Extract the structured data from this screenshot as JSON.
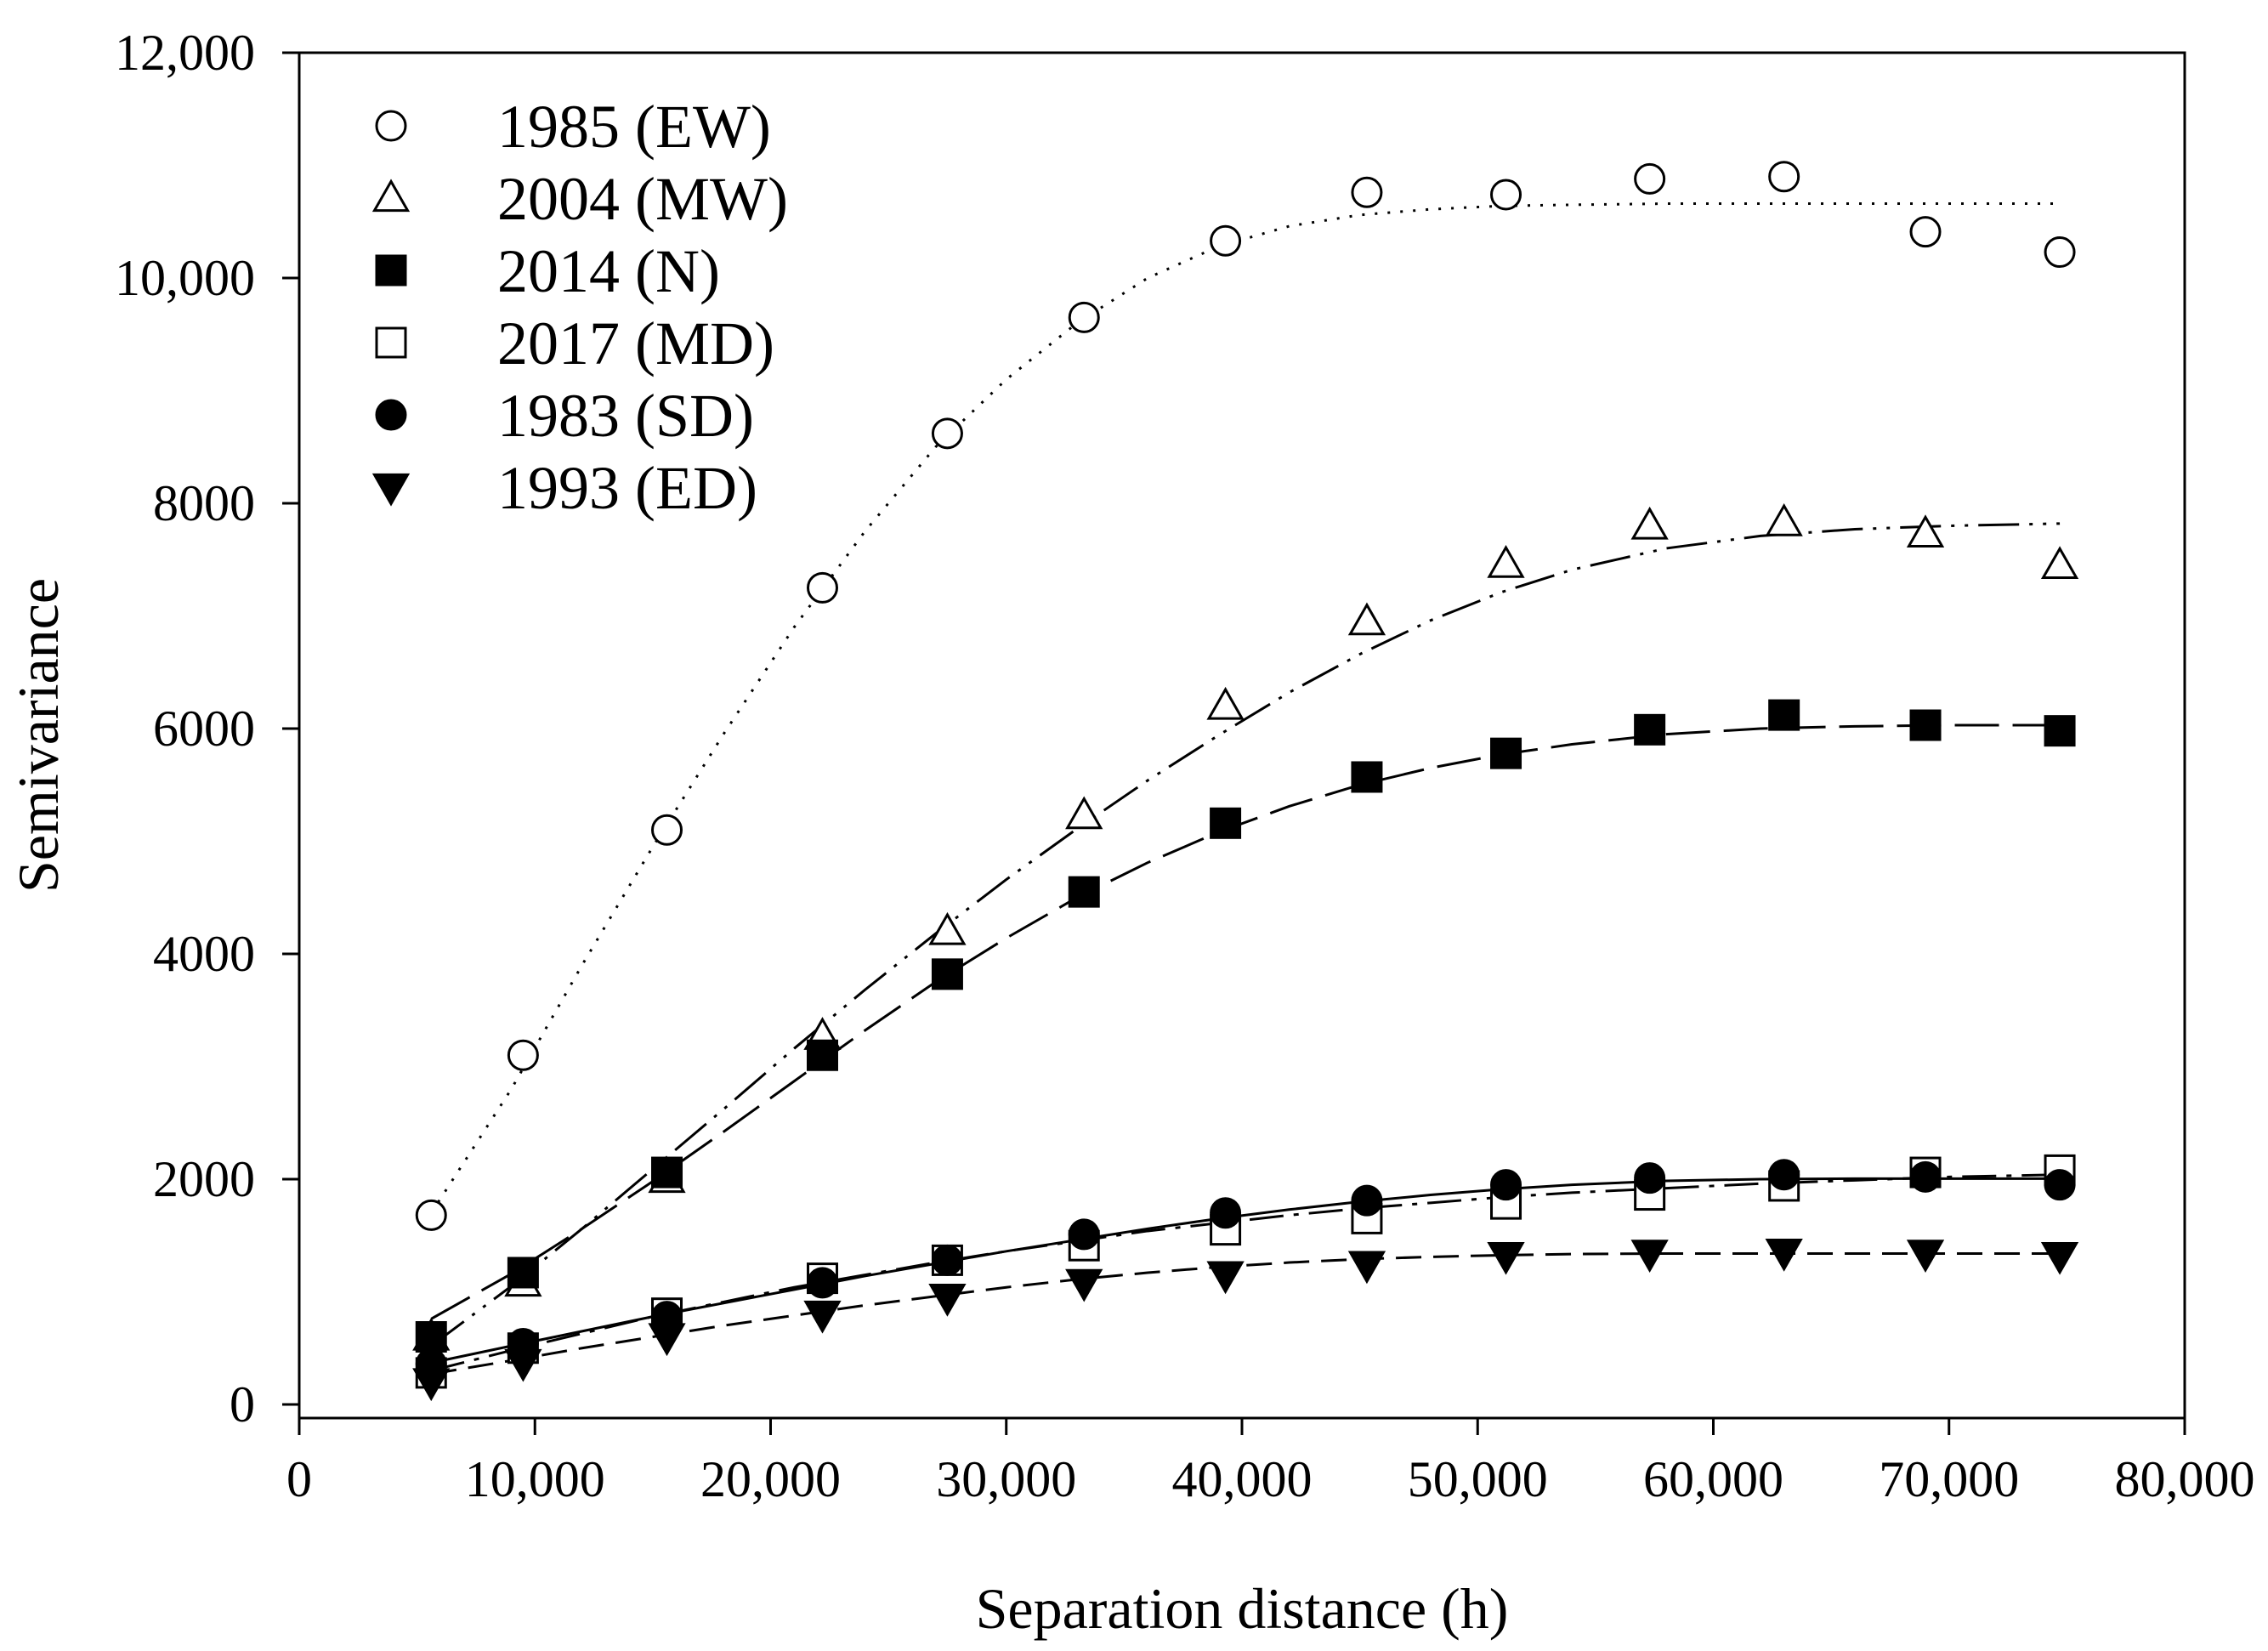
{
  "chart_data": {
    "type": "scatter",
    "title": "",
    "xlabel": "Separation distance (h)",
    "ylabel": "Semivariance",
    "xlim": [
      0,
      80000
    ],
    "ylim": [
      0,
      12000
    ],
    "x_ticks": [
      0,
      10000,
      20000,
      30000,
      40000,
      50000,
      60000,
      70000,
      80000
    ],
    "x_tick_labels": [
      "0",
      "10,000",
      "20,000",
      "30,000",
      "40,000",
      "50,000",
      "60,000",
      "70,000",
      "80,000"
    ],
    "y_ticks": [
      0,
      2000,
      4000,
      6000,
      8000,
      10000,
      12000
    ],
    "y_tick_labels": [
      "0",
      "2000",
      "4000",
      "6000",
      "8000",
      "10,000",
      "12,000"
    ],
    "grid": false,
    "legend_position": "top-left",
    "series": [
      {
        "name": "1985 (EW)",
        "marker": "circle-open",
        "line_style": "dotted",
        "x": [
          5600,
          9500,
          15600,
          22200,
          27500,
          33300,
          39300,
          45300,
          51200,
          57300,
          63000,
          69000,
          74700
        ],
        "y": [
          1680,
          3100,
          5100,
          7250,
          8620,
          9650,
          10330,
          10760,
          10740,
          10880,
          10900,
          10410,
          10230
        ],
        "fit_x": [
          5600,
          9000,
          12000,
          15000,
          18000,
          21000,
          24000,
          27000,
          30000,
          33000,
          36000,
          39000,
          42000,
          45000,
          48000,
          51000,
          54000,
          58000,
          62000,
          66000,
          70000,
          74700
        ],
        "fit_y": [
          1700,
          2800,
          3900,
          4950,
          5950,
          6900,
          7750,
          8500,
          9100,
          9600,
          10000,
          10280,
          10460,
          10560,
          10610,
          10640,
          10650,
          10660,
          10660,
          10660,
          10660,
          10660
        ]
      },
      {
        "name": "2004 (MW)",
        "marker": "triangle-open",
        "line_style": "dash-dot-dot",
        "x": [
          5600,
          9500,
          15600,
          22200,
          27500,
          33300,
          39300,
          45300,
          51200,
          57300,
          63000,
          69000,
          74700
        ],
        "y": [
          600,
          1080,
          2000,
          3270,
          4200,
          5230,
          6200,
          6950,
          7460,
          7800,
          7830,
          7730,
          7450
        ],
        "fit_x": [
          5600,
          9000,
          12000,
          15000,
          18000,
          21000,
          24000,
          27000,
          30000,
          33000,
          36000,
          39000,
          42000,
          45000,
          48000,
          51000,
          54000,
          58000,
          62000,
          66000,
          70000,
          74700
        ],
        "fit_y": [
          520,
          1050,
          1560,
          2090,
          2620,
          3160,
          3680,
          4180,
          4660,
          5110,
          5540,
          5940,
          6320,
          6660,
          6960,
          7210,
          7410,
          7600,
          7710,
          7770,
          7800,
          7820
        ]
      },
      {
        "name": "2014 (N)",
        "marker": "square-filled",
        "line_style": "long-dash",
        "x": [
          5600,
          9500,
          15600,
          22200,
          27500,
          33300,
          39300,
          45300,
          51200,
          57300,
          63000,
          69000,
          74700
        ],
        "y": [
          600,
          1170,
          2060,
          3100,
          3820,
          4550,
          5160,
          5570,
          5780,
          5990,
          6120,
          6030,
          5980
        ],
        "fit_x": [
          5600,
          9000,
          12000,
          15000,
          18000,
          21000,
          24000,
          27000,
          30000,
          33000,
          36000,
          39000,
          42000,
          45000,
          48000,
          51000,
          54000,
          58000,
          62000,
          66000,
          70000,
          74700
        ],
        "fit_y": [
          760,
          1160,
          1560,
          1980,
          2420,
          2870,
          3320,
          3750,
          4140,
          4500,
          4810,
          5080,
          5310,
          5500,
          5650,
          5770,
          5860,
          5950,
          6000,
          6020,
          6030,
          6030
        ]
      },
      {
        "name": "2017 (MD)",
        "marker": "square-open",
        "line_style": "dash-dot",
        "x": [
          5600,
          9500,
          15600,
          22200,
          27500,
          33300,
          39300,
          45300,
          51200,
          57300,
          63000,
          69000,
          74700
        ],
        "y": [
          280,
          500,
          810,
          1120,
          1280,
          1410,
          1550,
          1650,
          1780,
          1860,
          1940,
          2060,
          2080
        ],
        "fit_x": [
          5600,
          9000,
          12000,
          15000,
          18000,
          21000,
          24000,
          27000,
          30000,
          33000,
          36000,
          39000,
          42000,
          45000,
          48000,
          51000,
          54000,
          58000,
          62000,
          66000,
          70000,
          74700
        ],
        "fit_y": [
          300,
          480,
          630,
          780,
          910,
          1040,
          1150,
          1260,
          1360,
          1450,
          1540,
          1610,
          1680,
          1740,
          1790,
          1840,
          1880,
          1920,
          1960,
          1990,
          2020,
          2040
        ]
      },
      {
        "name": "1983 (SD)",
        "marker": "circle-filled",
        "line_style": "solid",
        "x": [
          5600,
          9500,
          15600,
          22200,
          27500,
          33300,
          39300,
          45300,
          51200,
          57300,
          63000,
          69000,
          74700
        ],
        "y": [
          360,
          540,
          780,
          1080,
          1280,
          1510,
          1700,
          1810,
          1950,
          2010,
          2040,
          2020,
          1950
        ],
        "fit_x": [
          5600,
          9000,
          12000,
          15000,
          18000,
          21000,
          24000,
          27000,
          30000,
          33000,
          36000,
          39000,
          42000,
          45000,
          48000,
          51000,
          54000,
          58000,
          62000,
          66000,
          70000,
          74700
        ],
        "fit_y": [
          370,
          520,
          650,
          780,
          900,
          1020,
          1140,
          1250,
          1360,
          1460,
          1560,
          1650,
          1730,
          1800,
          1860,
          1910,
          1950,
          1985,
          2000,
          2005,
          2005,
          2005
        ]
      },
      {
        "name": "1993 (ED)",
        "marker": "triangle-down-filled",
        "line_style": "dashed",
        "x": [
          5600,
          9500,
          15600,
          22200,
          27500,
          33300,
          39300,
          45300,
          51200,
          57300,
          63000,
          69000,
          74700
        ],
        "y": [
          200,
          370,
          600,
          800,
          950,
          1080,
          1150,
          1240,
          1320,
          1340,
          1350,
          1340,
          1320
        ],
        "fit_x": [
          5600,
          9000,
          12000,
          15000,
          18000,
          21000,
          24000,
          27000,
          30000,
          33000,
          36000,
          39000,
          42000,
          45000,
          48000,
          51000,
          54000,
          58000,
          62000,
          66000,
          70000,
          74700
        ],
        "fit_y": [
          270,
          390,
          500,
          600,
          700,
          790,
          880,
          960,
          1040,
          1110,
          1170,
          1220,
          1260,
          1290,
          1310,
          1325,
          1335,
          1340,
          1340,
          1340,
          1340,
          1340
        ]
      }
    ]
  }
}
